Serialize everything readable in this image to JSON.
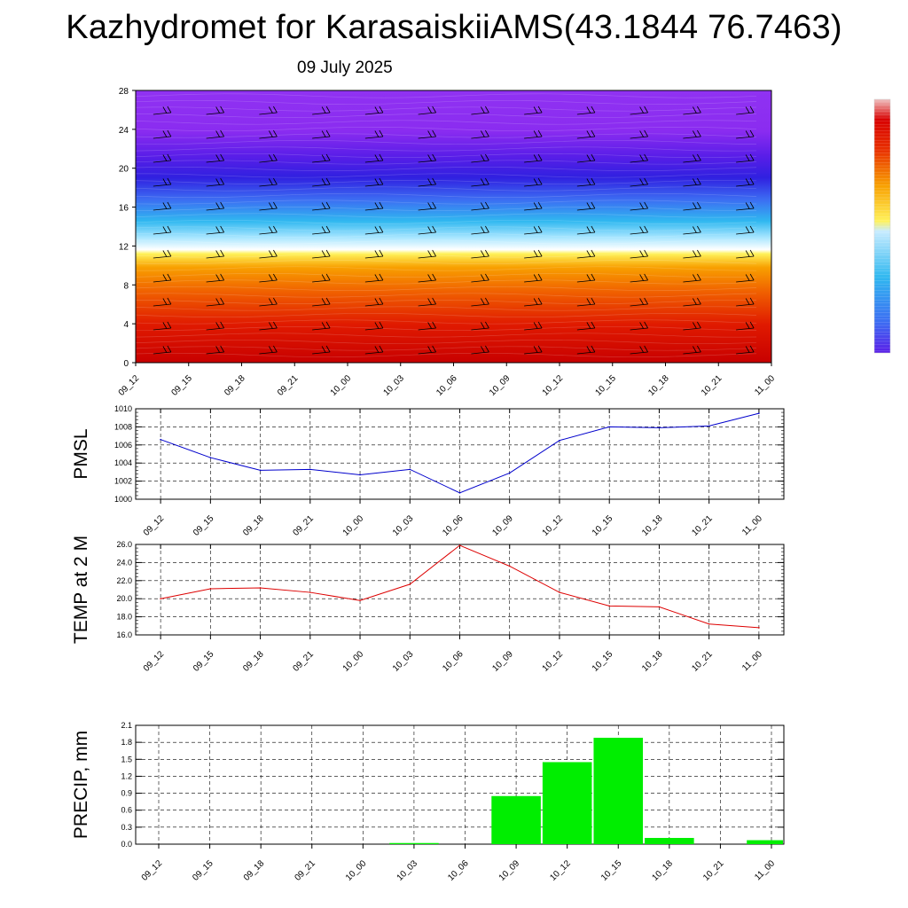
{
  "header": {
    "title": "Kazhydromet for KarasaiskiiAMS(43.1844 76.7463)",
    "date": "09 July 2025"
  },
  "time_labels": [
    "09_12",
    "09_15",
    "09_18",
    "09_21",
    "10_00",
    "10_03",
    "10_06",
    "10_09",
    "10_12",
    "10_15",
    "10_18",
    "10_21",
    "11_00"
  ],
  "colors": {
    "pmsl_line": "#0000cc",
    "temp_line": "#dd0000",
    "precip_bar": "#00ee00",
    "grid": "#000000"
  },
  "chart_data": [
    {
      "type": "heatmap",
      "title": "Kazhydromet for KarasaiskiiAMS(43.1844 76.7463)",
      "subtitle": "09 July 2025",
      "x": [
        "09_12",
        "09_15",
        "09_18",
        "09_21",
        "10_00",
        "10_03",
        "10_06",
        "10_09",
        "10_12",
        "10_15",
        "10_18",
        "10_21",
        "11_00"
      ],
      "yticks": [
        0,
        4,
        8,
        12,
        16,
        20,
        24,
        28
      ],
      "ylim": [
        0,
        28
      ],
      "overlay": "wind barbs",
      "colorbar": "red (low levels) through orange, yellow, cyan, blue to violet (upper levels)"
    },
    {
      "type": "line",
      "ylabel": "PMSL",
      "ylim": [
        1000,
        1010
      ],
      "yticks": [
        "1000",
        "1002",
        "1004",
        "1006",
        "1008",
        "1010"
      ],
      "x": [
        "09_12",
        "09_15",
        "09_18",
        "09_21",
        "10_00",
        "10_03",
        "10_06",
        "10_09",
        "10_12",
        "10_15",
        "10_18",
        "10_21",
        "11_00"
      ],
      "values": [
        1006.6,
        1004.6,
        1003.2,
        1003.3,
        1002.7,
        1003.3,
        1000.7,
        1002.9,
        1006.5,
        1008.0,
        1007.9,
        1008.1,
        1009.5
      ],
      "grid": true
    },
    {
      "type": "line",
      "ylabel": "TEMP at 2 M",
      "ylim": [
        16,
        26
      ],
      "yticks": [
        "16.0",
        "18.0",
        "20.0",
        "22.0",
        "24.0",
        "26.0"
      ],
      "x": [
        "09_12",
        "09_15",
        "09_18",
        "09_21",
        "10_00",
        "10_03",
        "10_06",
        "10_09",
        "10_12",
        "10_15",
        "10_18",
        "10_21",
        "11_00"
      ],
      "values": [
        20.0,
        21.1,
        21.2,
        20.7,
        19.8,
        21.6,
        25.9,
        23.6,
        20.7,
        19.2,
        19.1,
        17.2,
        16.8
      ],
      "grid": true
    },
    {
      "type": "bar",
      "ylabel": "PRECIP, mm",
      "ylim": [
        0,
        2.1
      ],
      "yticks": [
        "0.0",
        "0.3",
        "0.6",
        "0.9",
        "1.2",
        "1.5",
        "1.8",
        "2.1"
      ],
      "categories": [
        "09_12",
        "09_15",
        "09_18",
        "09_21",
        "10_00",
        "10_03",
        "10_06",
        "10_09",
        "10_12",
        "10_15",
        "10_18",
        "10_21",
        "11_00"
      ],
      "values": [
        0,
        0,
        0,
        0,
        0,
        0.02,
        0,
        0.85,
        1.45,
        1.88,
        0.11,
        0,
        0.07
      ],
      "grid": true
    }
  ]
}
